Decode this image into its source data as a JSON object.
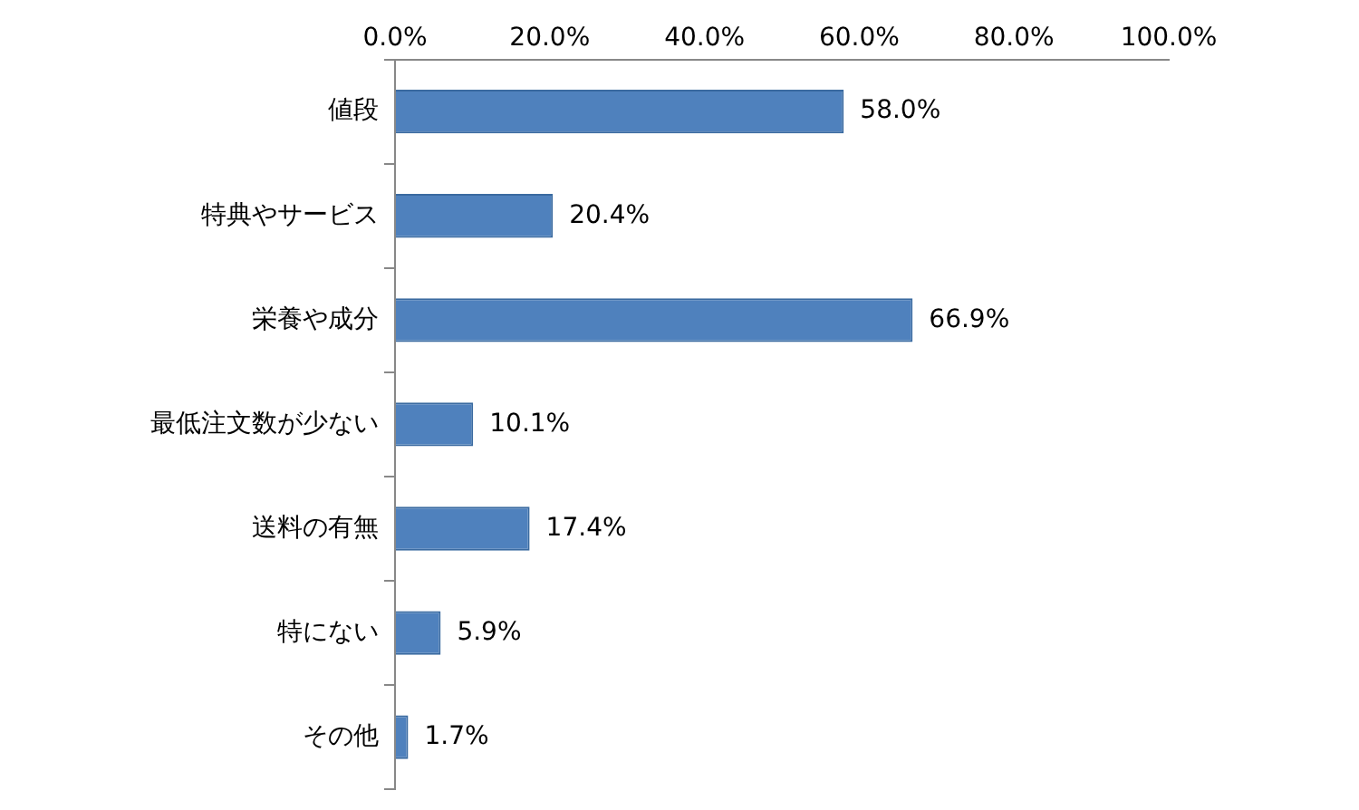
{
  "chart_data": {
    "type": "bar",
    "orientation": "horizontal",
    "categories": [
      "値段",
      "特典やサービス",
      "栄養や成分",
      "最低注文数が少ない",
      "送料の有無",
      "特にない",
      "その他"
    ],
    "values": [
      58.0,
      20.4,
      66.9,
      10.1,
      17.4,
      5.9,
      1.7
    ],
    "value_labels": [
      "58.0%",
      "20.4%",
      "66.9%",
      "10.1%",
      "17.4%",
      "5.9%",
      "1.7%"
    ],
    "color": "#4f81bd",
    "xlim": [
      0,
      100
    ],
    "xticks": [
      {
        "value": 0,
        "label": "0.0%"
      },
      {
        "value": 20,
        "label": "20.0%"
      },
      {
        "value": 40,
        "label": "40.0%"
      },
      {
        "value": 60,
        "label": "60.0%"
      },
      {
        "value": 80,
        "label": "80.0%"
      },
      {
        "value": 100,
        "label": "100.0%"
      }
    ],
    "grid": false,
    "legend": false
  }
}
